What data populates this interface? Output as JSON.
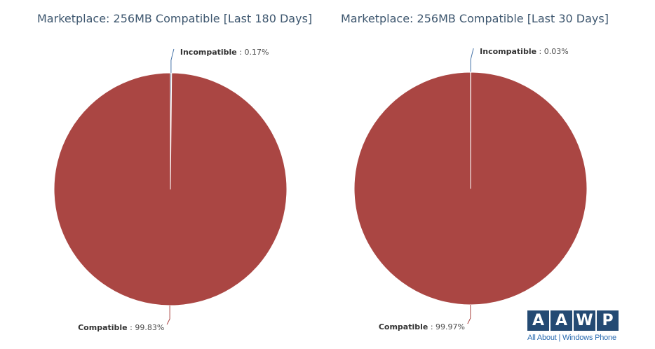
{
  "chart_data": [
    {
      "type": "pie",
      "title": "Marketplace: 256MB Compatible [Last 180 Days]",
      "slices": [
        {
          "name": "Incompatible",
          "value": 0.17,
          "value_label": "0.17%",
          "color": "#4572a7"
        },
        {
          "name": "Compatible",
          "value": 99.83,
          "value_label": "99.83%",
          "color": "#aa4643"
        }
      ]
    },
    {
      "type": "pie",
      "title": "Marketplace: 256MB Compatible [Last 30 Days]",
      "slices": [
        {
          "name": "Incompatible",
          "value": 0.03,
          "value_label": "0.03%",
          "color": "#4572a7"
        },
        {
          "name": "Compatible",
          "value": 99.97,
          "value_label": "99.97%",
          "color": "#aa4643"
        }
      ]
    }
  ],
  "logo": {
    "letters": [
      "A",
      "A",
      "W",
      "P"
    ],
    "tagline": "All About | Windows Phone"
  }
}
